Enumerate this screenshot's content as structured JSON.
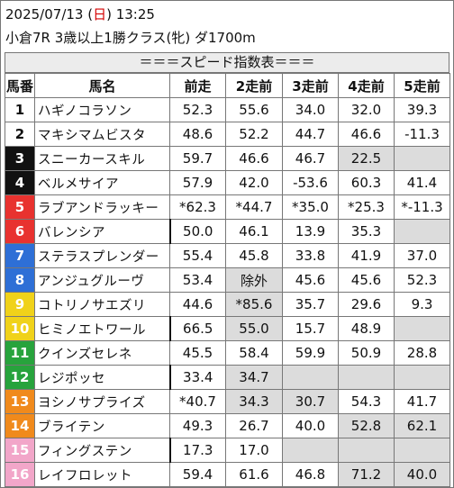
{
  "header": {
    "datetime_prefix": "2025/07/13 (",
    "weekday": "日",
    "datetime_suffix": ") 13:25",
    "race_info": "小倉7R 3歳以上1勝クラス(牝) ダ1700m"
  },
  "banner": "＝＝＝スピード指数表＝＝＝",
  "columns": [
    "馬番",
    "馬名",
    "前走",
    "2走前",
    "3走前",
    "4走前",
    "5走前"
  ],
  "colors": {
    "frame_1": "#ffffff",
    "frame_2": "#111111",
    "frame_3": "#e8322f",
    "frame_4": "#2e6fd6",
    "frame_5": "#f0d21a",
    "frame_6": "#27a33c",
    "frame_7": "#f08a1c",
    "frame_8": "#f2a6c9",
    "highlight_cell": "#dcdcdc",
    "sunday": "#d40000"
  },
  "rows": [
    {
      "no": "1",
      "frame": 1,
      "name": "ハギノコラソン",
      "vals": [
        "52.3",
        "55.6",
        "34.0",
        "32.0",
        "39.3"
      ],
      "gray": [],
      "bar": false
    },
    {
      "no": "2",
      "frame": 1,
      "name": "マキシマムビスタ",
      "vals": [
        "48.6",
        "52.2",
        "44.7",
        "46.6",
        "-11.3"
      ],
      "gray": [],
      "bar": false
    },
    {
      "no": "3",
      "frame": 2,
      "name": "スニーカースキル",
      "vals": [
        "59.7",
        "46.6",
        "46.7",
        "22.5",
        ""
      ],
      "gray": [
        3,
        4
      ],
      "bar": false
    },
    {
      "no": "4",
      "frame": 2,
      "name": "ベルメサイア",
      "vals": [
        "57.9",
        "42.0",
        "-53.6",
        "60.3",
        "41.4"
      ],
      "gray": [],
      "bar": false
    },
    {
      "no": "5",
      "frame": 3,
      "name": "ラブアンドラッキー",
      "vals": [
        "*62.3",
        "*44.7",
        "*35.0",
        "*25.3",
        "*-11.3"
      ],
      "gray": [],
      "bar": false
    },
    {
      "no": "6",
      "frame": 3,
      "name": "バレンシア",
      "vals": [
        "50.0",
        "46.1",
        "13.9",
        "35.3",
        ""
      ],
      "gray": [
        4
      ],
      "bar": true
    },
    {
      "no": "7",
      "frame": 4,
      "name": "ステラスプレンダー",
      "vals": [
        "55.4",
        "45.8",
        "33.8",
        "41.9",
        "37.0"
      ],
      "gray": [],
      "bar": false
    },
    {
      "no": "8",
      "frame": 4,
      "name": "アンジュグルーヴ",
      "vals": [
        "53.4",
        "除外",
        "45.6",
        "45.6",
        "52.3"
      ],
      "gray": [
        1
      ],
      "bar": false
    },
    {
      "no": "9",
      "frame": 5,
      "name": "コトリノサエズリ",
      "vals": [
        "44.6",
        "*85.6",
        "35.7",
        "29.6",
        "9.3"
      ],
      "gray": [
        1
      ],
      "bar": false
    },
    {
      "no": "10",
      "frame": 5,
      "name": "ヒミノエトワール",
      "vals": [
        "66.5",
        "55.0",
        "15.7",
        "48.9",
        ""
      ],
      "gray": [
        1,
        4
      ],
      "bar": true
    },
    {
      "no": "11",
      "frame": 6,
      "name": "クインズセレネ",
      "vals": [
        "45.5",
        "58.4",
        "59.9",
        "50.9",
        "28.8"
      ],
      "gray": [],
      "bar": false
    },
    {
      "no": "12",
      "frame": 6,
      "name": "レジポッセ",
      "vals": [
        "33.4",
        "34.7",
        "",
        "",
        ""
      ],
      "gray": [
        1,
        2,
        3,
        4
      ],
      "bar": true
    },
    {
      "no": "13",
      "frame": 7,
      "name": "ヨシノサプライズ",
      "vals": [
        "*40.7",
        "34.3",
        "30.7",
        "54.3",
        "41.7"
      ],
      "gray": [
        1,
        2
      ],
      "bar": false
    },
    {
      "no": "14",
      "frame": 7,
      "name": "ブライテン",
      "vals": [
        "49.3",
        "26.7",
        "40.0",
        "52.8",
        "62.1"
      ],
      "gray": [
        3,
        4
      ],
      "bar": false
    },
    {
      "no": "15",
      "frame": 8,
      "name": "フィングステン",
      "vals": [
        "17.3",
        "17.0",
        "",
        "",
        ""
      ],
      "gray": [
        2,
        3,
        4
      ],
      "bar": true
    },
    {
      "no": "16",
      "frame": 8,
      "name": "レイフロレット",
      "vals": [
        "59.4",
        "61.6",
        "46.8",
        "71.2",
        "40.0"
      ],
      "gray": [
        3,
        4
      ],
      "bar": false
    }
  ]
}
